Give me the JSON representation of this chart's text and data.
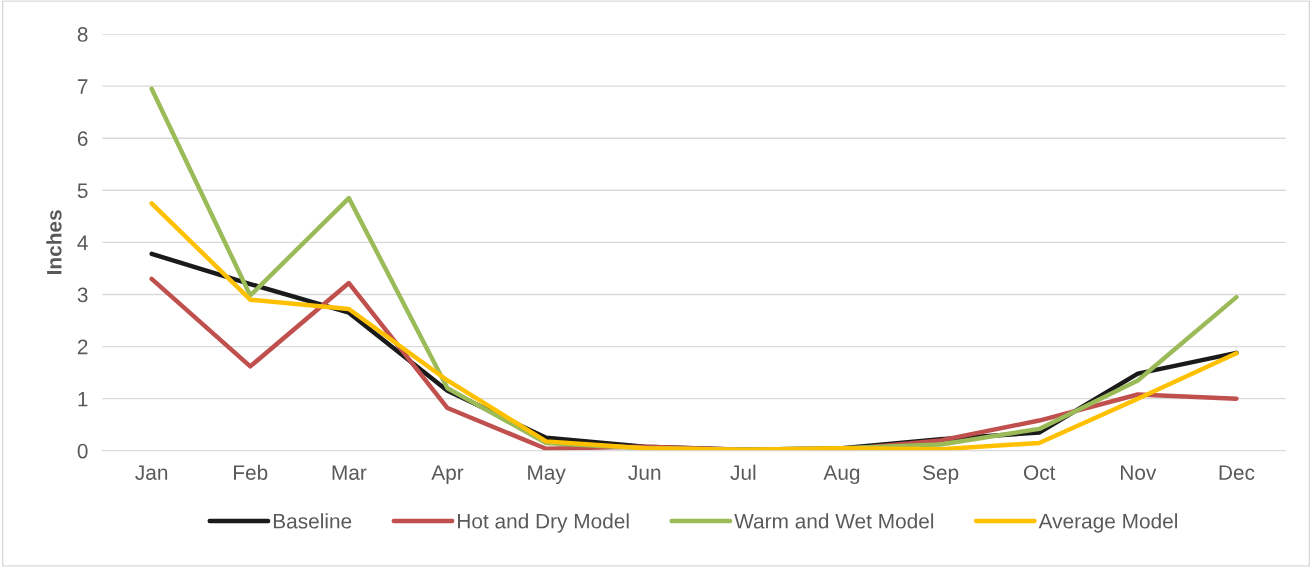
{
  "chart_data": {
    "type": "line",
    "ylabel": "Inches",
    "categories": [
      "Jan",
      "Feb",
      "Mar",
      "Apr",
      "May",
      "Jun",
      "Jul",
      "Aug",
      "Sep",
      "Oct",
      "Nov",
      "Dec"
    ],
    "series": [
      {
        "name": "Baseline",
        "color": "#1a1a1a",
        "values": [
          3.78,
          3.2,
          2.65,
          1.15,
          0.25,
          0.08,
          0.02,
          0.05,
          0.22,
          0.35,
          1.48,
          1.88
        ]
      },
      {
        "name": "Hot and Dry Model",
        "color": "#c0504d",
        "values": [
          3.3,
          1.62,
          3.22,
          0.82,
          0.04,
          0.08,
          0.02,
          0.02,
          0.2,
          0.58,
          1.08,
          1.0
        ]
      },
      {
        "name": "Warm and Wet Model",
        "color": "#9bbb59",
        "values": [
          6.95,
          2.98,
          4.85,
          1.2,
          0.15,
          0.05,
          0.02,
          0.05,
          0.12,
          0.42,
          1.35,
          2.95
        ]
      },
      {
        "name": "Average Model",
        "color": "#ffc000",
        "values": [
          4.75,
          2.9,
          2.72,
          1.35,
          0.18,
          0.05,
          0.02,
          0.05,
          0.03,
          0.15,
          1.0,
          1.87
        ]
      }
    ],
    "ylim": [
      0,
      8
    ],
    "yticks": [
      0,
      1,
      2,
      3,
      4,
      5,
      6,
      7,
      8
    ],
    "grid": "y",
    "legend": "bottom",
    "marker": "none",
    "line_style": "solid"
  }
}
